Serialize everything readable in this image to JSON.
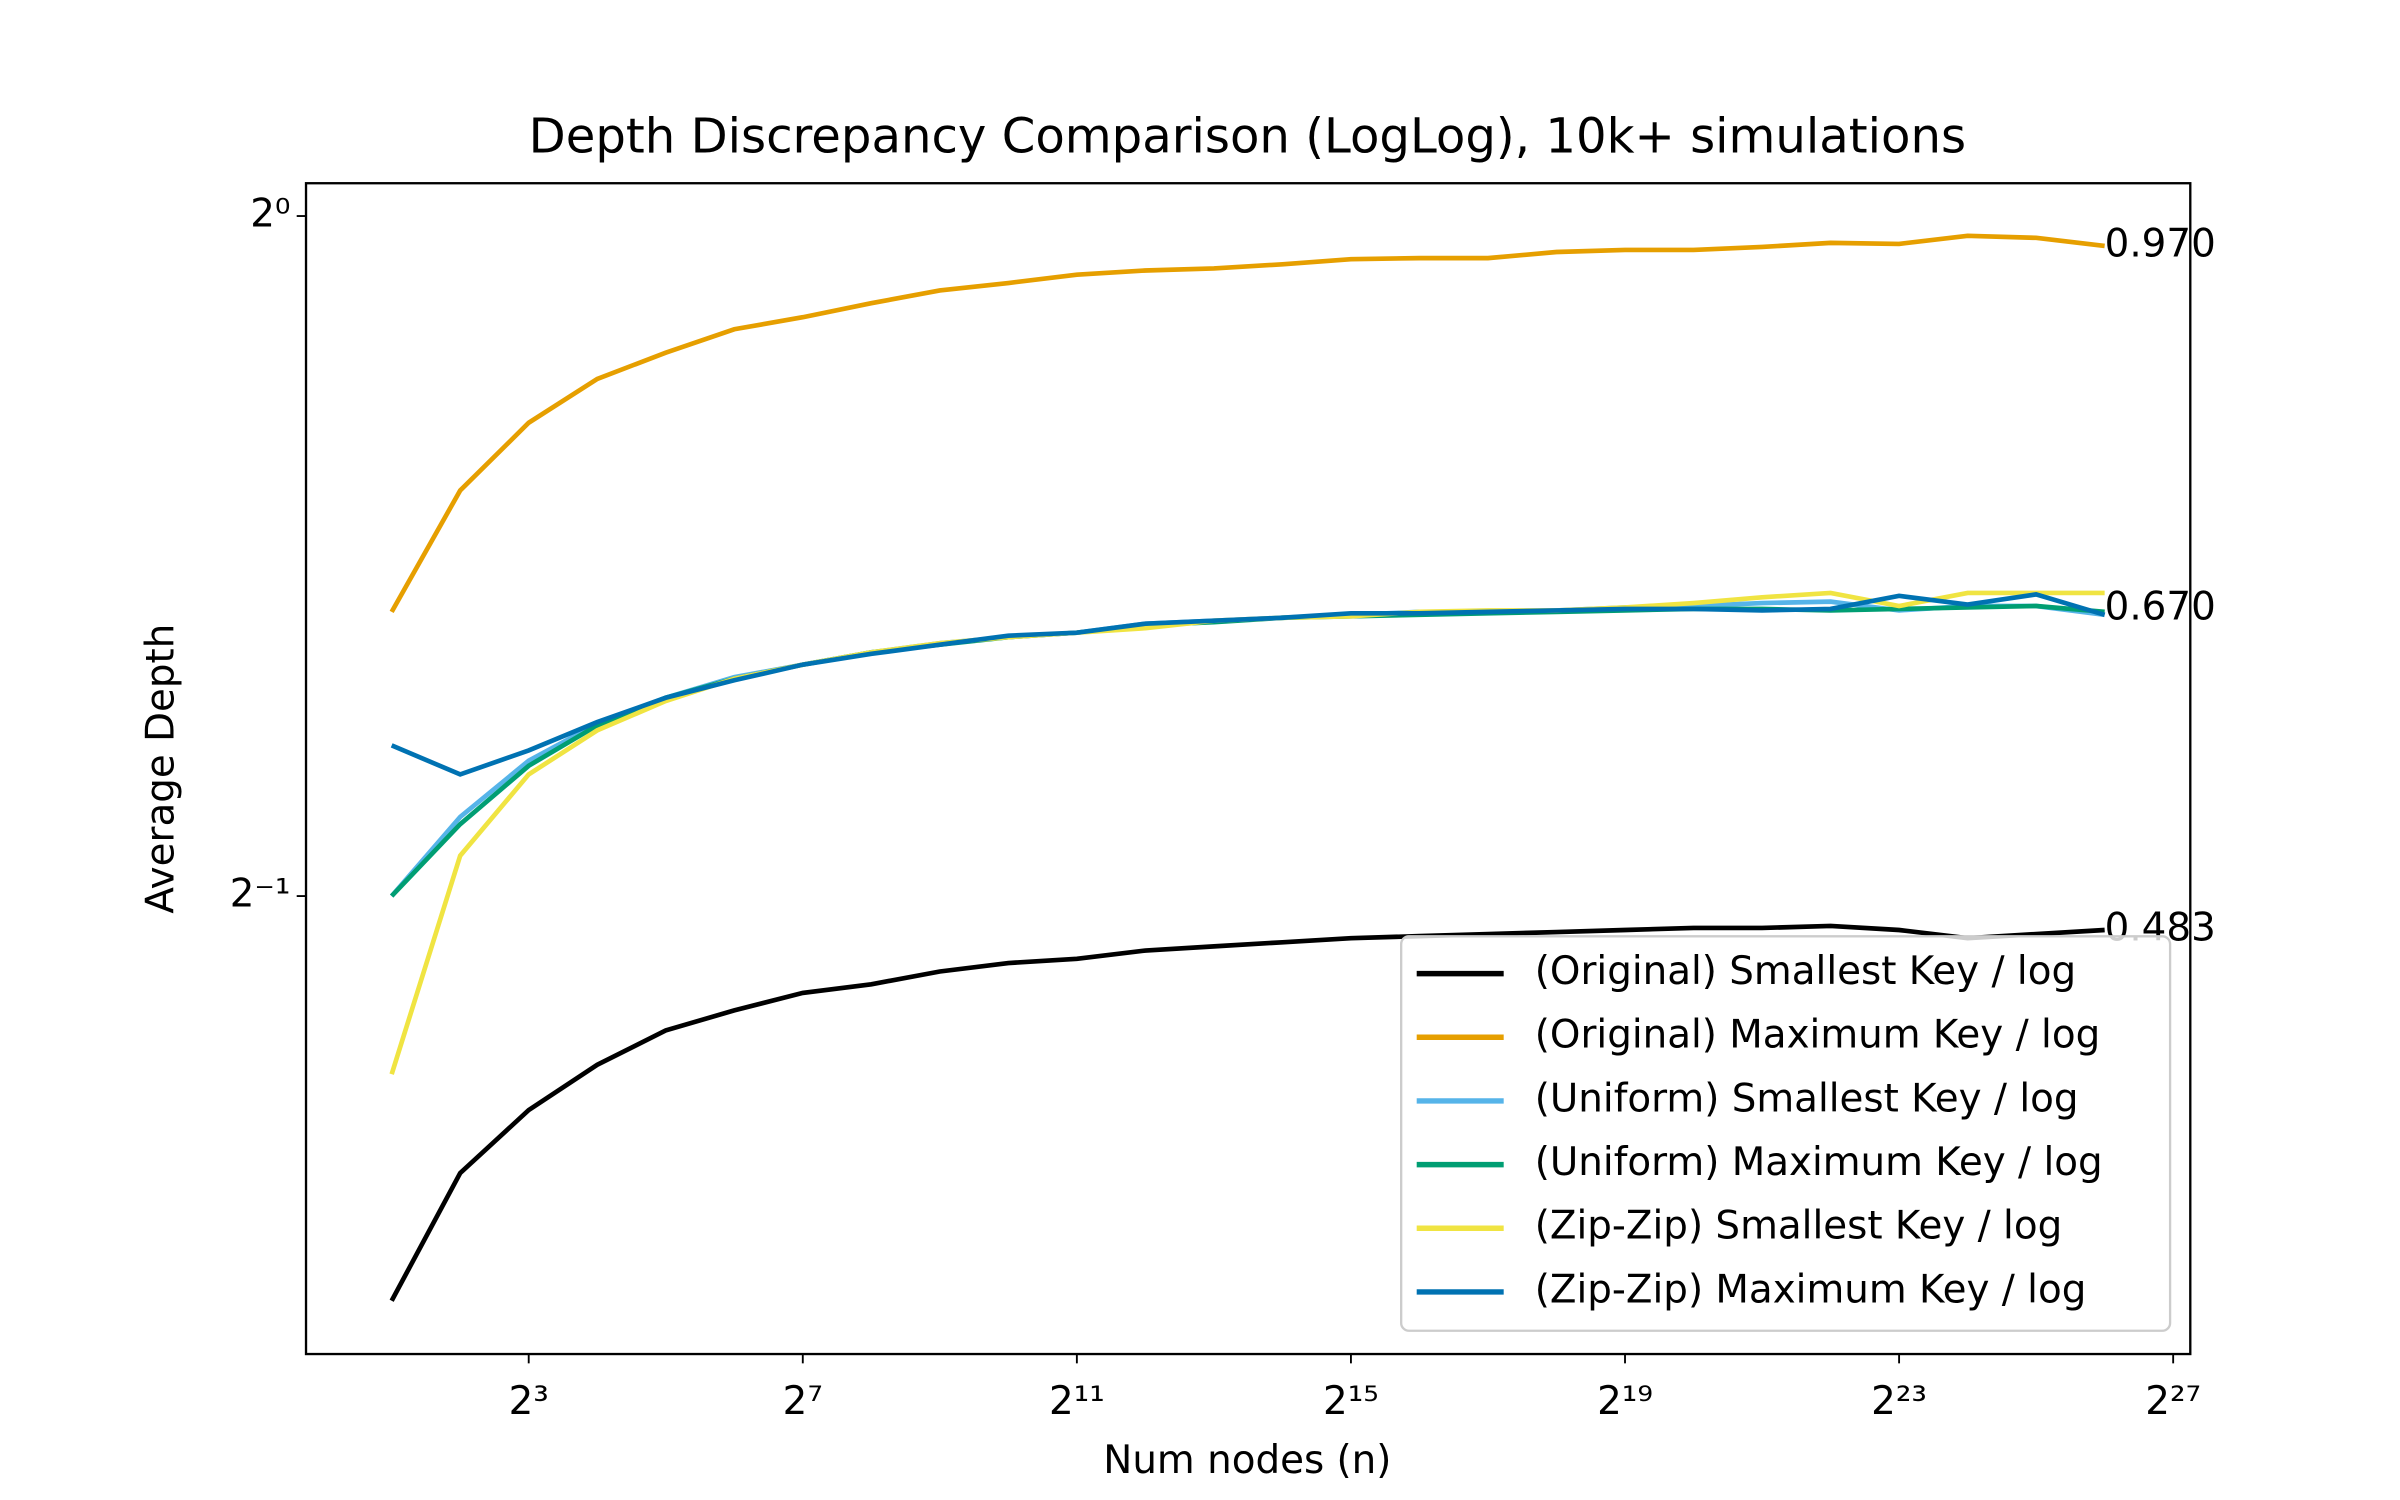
{
  "chart_data": {
    "type": "line",
    "title": "Depth Discrepancy Comparison (LogLog), 10k+ simulations",
    "xlabel": "Num nodes (n)",
    "ylabel": "Average Depth",
    "xscale": "log",
    "yscale": "log",
    "log_base": 2,
    "x": [
      2,
      4,
      8,
      16,
      32,
      64,
      128,
      256,
      512,
      1024,
      2048,
      4096,
      8192,
      16384,
      32768,
      65536,
      131072,
      262144,
      524288,
      1048576,
      2097152,
      4194304,
      8388608,
      16777216,
      33554432,
      67108864
    ],
    "series": [
      {
        "name": "(Original) Smallest Key / log",
        "color": "#000000",
        "values": [
          0.331,
          0.377,
          0.402,
          0.421,
          0.436,
          0.445,
          0.453,
          0.457,
          0.463,
          0.467,
          0.469,
          0.473,
          0.475,
          0.477,
          0.479,
          0.48,
          0.481,
          0.482,
          0.483,
          0.484,
          0.484,
          0.485,
          0.483,
          0.479,
          0.481,
          0.483
        ]
      },
      {
        "name": "(Original) Maximum Key / log",
        "color": "#e69f00",
        "values": [
          0.668,
          0.756,
          0.81,
          0.847,
          0.87,
          0.891,
          0.902,
          0.915,
          0.927,
          0.934,
          0.942,
          0.946,
          0.948,
          0.952,
          0.957,
          0.958,
          0.958,
          0.964,
          0.966,
          0.966,
          0.969,
          0.973,
          0.972,
          0.98,
          0.978,
          0.97
        ]
      },
      {
        "name": "(Uniform) Smallest Key / log",
        "color": "#56b4e9",
        "values": [
          0.5,
          0.542,
          0.574,
          0.596,
          0.612,
          0.625,
          0.633,
          0.641,
          0.647,
          0.651,
          0.654,
          0.66,
          0.662,
          0.664,
          0.666,
          0.668,
          0.668,
          0.669,
          0.671,
          0.672,
          0.674,
          0.675,
          0.669,
          0.672,
          0.672,
          0.666
        ]
      },
      {
        "name": "(Uniform) Maximum Key / log",
        "color": "#009e73",
        "values": [
          0.5,
          0.538,
          0.571,
          0.595,
          0.612,
          0.624,
          0.633,
          0.641,
          0.646,
          0.651,
          0.654,
          0.659,
          0.661,
          0.664,
          0.665,
          0.666,
          0.667,
          0.668,
          0.669,
          0.67,
          0.67,
          0.669,
          0.67,
          0.671,
          0.672,
          0.668
        ]
      },
      {
        "name": "(Zip-Zip) Smallest Key / log",
        "color": "#f0e442",
        "values": [
          0.417,
          0.521,
          0.566,
          0.592,
          0.61,
          0.624,
          0.633,
          0.641,
          0.647,
          0.651,
          0.654,
          0.657,
          0.662,
          0.664,
          0.665,
          0.668,
          0.669,
          0.669,
          0.671,
          0.674,
          0.678,
          0.681,
          0.672,
          0.681,
          0.681,
          0.681
        ]
      },
      {
        "name": "(Zip-Zip) Maximum Key / log",
        "color": "#0072b2",
        "values": [
          0.583,
          0.566,
          0.58,
          0.597,
          0.612,
          0.623,
          0.633,
          0.64,
          0.646,
          0.652,
          0.654,
          0.66,
          0.662,
          0.664,
          0.667,
          0.667,
          0.668,
          0.669,
          0.67,
          0.67,
          0.669,
          0.67,
          0.679,
          0.673,
          0.68,
          0.666
        ]
      }
    ],
    "annotations": [
      {
        "text": "0.970",
        "x": 67108864,
        "y": 0.97
      },
      {
        "text": "0.670",
        "x": 67108864,
        "y": 0.67
      },
      {
        "text": "0.483",
        "x": 67108864,
        "y": 0.483
      }
    ],
    "xlim": [
      0.8409,
      159600000
    ],
    "ylim": [
      0.3135,
      1.034
    ],
    "xticks": [
      {
        "value": 8,
        "label": "2³"
      },
      {
        "value": 128,
        "label": "2⁷"
      },
      {
        "value": 2048,
        "label": "2¹¹"
      },
      {
        "value": 32768,
        "label": "2¹⁵"
      },
      {
        "value": 524288,
        "label": "2¹⁹"
      },
      {
        "value": 8388608,
        "label": "2²³"
      },
      {
        "value": 134217728,
        "label": "2²⁷"
      }
    ],
    "yticks": [
      {
        "value": 0.5,
        "label": "2⁻¹"
      },
      {
        "value": 1,
        "label": "2⁰"
      }
    ],
    "legend": "lower right",
    "grid": false
  }
}
